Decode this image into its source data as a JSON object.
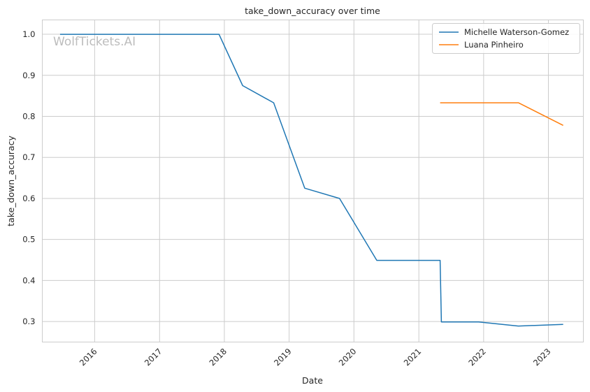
{
  "chart_data": {
    "type": "line",
    "title": "take_down_accuracy over time",
    "xlabel": "Date",
    "ylabel": "take_down_accuracy",
    "watermark": "WolfTickets.AI",
    "x_ticks": [
      "2016",
      "2017",
      "2018",
      "2019",
      "2020",
      "2021",
      "2022",
      "2023"
    ],
    "y_ticks": [
      "0.3",
      "0.4",
      "0.5",
      "0.6",
      "0.7",
      "0.8",
      "0.9",
      "1.0"
    ],
    "ylim": [
      0.25,
      1.035
    ],
    "xlim": [
      "2015-03-12",
      "2023-07-17"
    ],
    "grid": true,
    "legend_position": "top-right",
    "series": [
      {
        "name": "Michelle Waterson-Gomez",
        "color": "#1f77b4",
        "points": [
          {
            "x": "2015-06-20",
            "y": 1.0
          },
          {
            "x": "2017-12-02",
            "y": 1.0
          },
          {
            "x": "2018-04-14",
            "y": 0.875
          },
          {
            "x": "2018-10-06",
            "y": 0.833
          },
          {
            "x": "2019-03-30",
            "y": 0.625
          },
          {
            "x": "2019-10-12",
            "y": 0.6
          },
          {
            "x": "2020-05-09",
            "y": 0.449
          },
          {
            "x": "2021-05-01",
            "y": 0.449
          },
          {
            "x": "2021-05-08",
            "y": 0.299
          },
          {
            "x": "2021-12-04",
            "y": 0.299
          },
          {
            "x": "2022-07-16",
            "y": 0.289
          },
          {
            "x": "2023-03-25",
            "y": 0.293
          }
        ]
      },
      {
        "name": "Luana Pinheiro",
        "color": "#ff7f0e",
        "points": [
          {
            "x": "2021-05-01",
            "y": 0.833
          },
          {
            "x": "2022-07-16",
            "y": 0.833
          },
          {
            "x": "2023-03-25",
            "y": 0.778
          }
        ]
      }
    ]
  }
}
